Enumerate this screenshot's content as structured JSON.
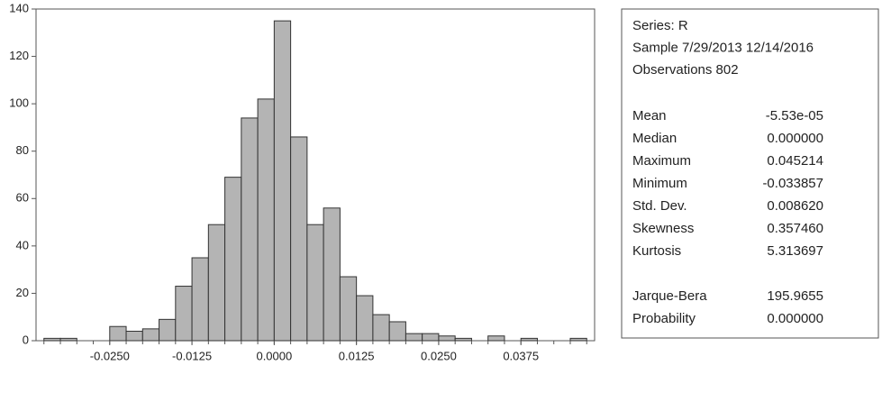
{
  "chart_data": {
    "type": "histogram",
    "bins": [
      -0.035,
      -0.0325,
      -0.03,
      -0.0275,
      -0.025,
      -0.0225,
      -0.02,
      -0.0175,
      -0.015,
      -0.0125,
      -0.01,
      -0.0075,
      -0.005,
      -0.0025,
      0,
      0.0025,
      0.005,
      0.0075,
      0.01,
      0.0125,
      0.015,
      0.0175,
      0.02,
      0.0225,
      0.025,
      0.0275,
      0.03,
      0.0325,
      0.035,
      0.0375,
      0.04,
      0.0425,
      0.045,
      0.0475
    ],
    "values": [
      1,
      1,
      0,
      0,
      6,
      4,
      5,
      9,
      23,
      35,
      49,
      69,
      94,
      102,
      135,
      86,
      49,
      56,
      27,
      19,
      11,
      8,
      3,
      3,
      2,
      1,
      0,
      2,
      0,
      1,
      0,
      0,
      1
    ],
    "color": "#b4b4b4",
    "xlim": [
      -0.0362,
      0.0487
    ],
    "xticks": [
      {
        "value": -0.025,
        "label": "-0.0250"
      },
      {
        "value": -0.0125,
        "label": "-0.0125"
      },
      {
        "value": 0,
        "label": "0.0000"
      },
      {
        "value": 0.0125,
        "label": "0.0125"
      },
      {
        "value": 0.025,
        "label": "0.0250"
      },
      {
        "value": 0.0375,
        "label": "0.0375"
      }
    ],
    "ylim": [
      0,
      140
    ],
    "yticks": [
      0,
      20,
      40,
      60,
      80,
      100,
      120,
      140
    ],
    "stats": {
      "header": [
        "Series: R",
        "Sample 7/29/2013 12/14/2016",
        "Observations 802"
      ],
      "rows": [
        [
          "Mean",
          "-5.53e-05"
        ],
        [
          "Median",
          "0.000000"
        ],
        [
          "Maximum",
          "0.045214"
        ],
        [
          "Minimum",
          "-0.033857"
        ],
        [
          "Std. Dev.",
          "0.008620"
        ],
        [
          "Skewness",
          "0.357460"
        ],
        [
          "Kurtosis",
          "5.313697"
        ]
      ],
      "test_rows": [
        [
          "Jarque-Bera",
          "195.9655"
        ],
        [
          "Probability",
          "0.000000"
        ]
      ]
    }
  }
}
